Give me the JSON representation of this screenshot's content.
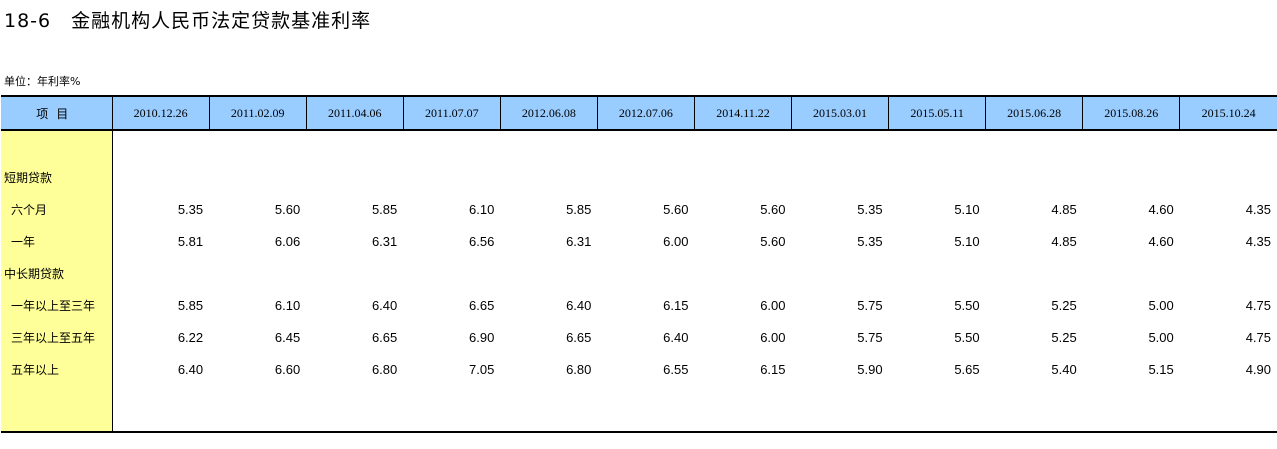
{
  "title": "18-6　金融机构人民币法定贷款基准利率",
  "unit": "单位：年利率%",
  "table": {
    "header_label": "项目",
    "dates": [
      "2010.12.26",
      "2011.02.09",
      "2011.04.06",
      "2011.07.07",
      "2012.06.08",
      "2012.07.06",
      "2014.11.22",
      "2015.03.01",
      "2015.05.11",
      "2015.06.28",
      "2015.08.26",
      "2015.10.24"
    ],
    "rows": [
      {
        "label": "短期贷款",
        "indent": false,
        "values": []
      },
      {
        "label": "六个月",
        "indent": true,
        "values": [
          "5.35",
          "5.60",
          "5.85",
          "6.10",
          "5.85",
          "5.60",
          "5.60",
          "5.35",
          "5.10",
          "4.85",
          "4.60",
          "4.35"
        ]
      },
      {
        "label": "一年",
        "indent": true,
        "values": [
          "5.81",
          "6.06",
          "6.31",
          "6.56",
          "6.31",
          "6.00",
          "5.60",
          "5.35",
          "5.10",
          "4.85",
          "4.60",
          "4.35"
        ]
      },
      {
        "label": "中长期贷款",
        "indent": false,
        "values": []
      },
      {
        "label": "一年以上至三年",
        "indent": true,
        "values": [
          "5.85",
          "6.10",
          "6.40",
          "6.65",
          "6.40",
          "6.15",
          "6.00",
          "5.75",
          "5.50",
          "5.25",
          "5.00",
          "4.75"
        ]
      },
      {
        "label": "三年以上至五年",
        "indent": true,
        "values": [
          "6.22",
          "6.45",
          "6.65",
          "6.90",
          "6.65",
          "6.40",
          "6.00",
          "5.75",
          "5.50",
          "5.25",
          "5.00",
          "4.75"
        ]
      },
      {
        "label": "五年以上",
        "indent": true,
        "values": [
          "6.40",
          "6.60",
          "6.80",
          "7.05",
          "6.80",
          "6.55",
          "6.15",
          "5.90",
          "5.65",
          "5.40",
          "5.15",
          "4.90"
        ]
      }
    ]
  }
}
